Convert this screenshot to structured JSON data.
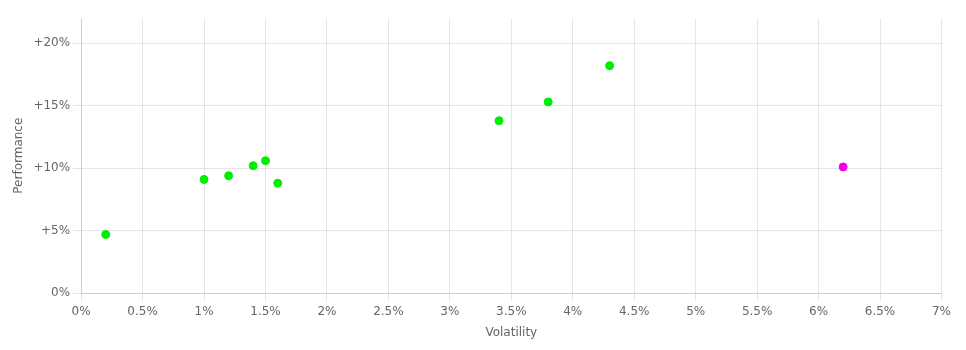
{
  "chart_data": {
    "type": "scatter",
    "xlabel": "Volatility",
    "ylabel": "Performance",
    "xlim": [
      0,
      0.07
    ],
    "ylim": [
      0,
      0.22
    ],
    "xticks": [
      {
        "value": 0.0,
        "label": "0%"
      },
      {
        "value": 0.005,
        "label": "0.5%"
      },
      {
        "value": 0.01,
        "label": "1%"
      },
      {
        "value": 0.015,
        "label": "1.5%"
      },
      {
        "value": 0.02,
        "label": "2%"
      },
      {
        "value": 0.025,
        "label": "2.5%"
      },
      {
        "value": 0.03,
        "label": "3%"
      },
      {
        "value": 0.035,
        "label": "3.5%"
      },
      {
        "value": 0.04,
        "label": "4%"
      },
      {
        "value": 0.045,
        "label": "4.5%"
      },
      {
        "value": 0.05,
        "label": "5%"
      },
      {
        "value": 0.055,
        "label": "5.5%"
      },
      {
        "value": 0.06,
        "label": "6%"
      },
      {
        "value": 0.065,
        "label": "6.5%"
      },
      {
        "value": 0.07,
        "label": "7%"
      }
    ],
    "yticks": [
      {
        "value": 0.0,
        "label": "0%"
      },
      {
        "value": 0.05,
        "label": "+5%"
      },
      {
        "value": 0.1,
        "label": "+10%"
      },
      {
        "value": 0.15,
        "label": "+15%"
      },
      {
        "value": 0.2,
        "label": "+20%"
      }
    ],
    "grid": true,
    "series": [
      {
        "color": "#00ee00",
        "x": [
          0.002,
          0.01,
          0.012,
          0.014,
          0.015,
          0.016,
          0.034,
          0.038,
          0.043
        ],
        "values": [
          0.047,
          0.091,
          0.094,
          0.102,
          0.106,
          0.088,
          0.138,
          0.153,
          0.182
        ]
      },
      {
        "color": "#ee00ee",
        "x": [
          0.062
        ],
        "values": [
          0.101
        ]
      }
    ]
  }
}
